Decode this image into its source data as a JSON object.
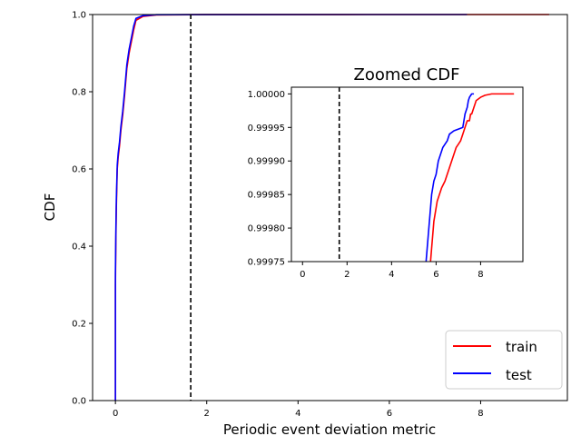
{
  "chart_data": [
    {
      "type": "line",
      "panel": "main",
      "title": "",
      "xlabel": "Periodic event deviation metric",
      "ylabel": "CDF",
      "xlim": [
        -0.5,
        9.9
      ],
      "ylim": [
        0.0,
        1.0
      ],
      "xticks": [
        0,
        2,
        4,
        6,
        8
      ],
      "yticks": [
        0.0,
        0.2,
        0.4,
        0.6,
        0.8,
        1.0
      ],
      "xtick_labels": [
        "0",
        "2",
        "4",
        "6",
        "8"
      ],
      "ytick_labels": [
        "0.0",
        "0.2",
        "0.4",
        "0.6",
        "0.8",
        "1.0"
      ],
      "grid": false,
      "legend_position": "lower-right",
      "threshold_line": {
        "x": 1.65,
        "style": "dashed",
        "color": "#000000"
      },
      "series": [
        {
          "name": "train",
          "color": "#ff0000",
          "x": [
            0.0,
            0.0,
            0.01,
            0.02,
            0.04,
            0.06,
            0.09,
            0.12,
            0.16,
            0.2,
            0.25,
            0.3,
            0.35,
            0.4,
            0.45,
            0.6,
            0.9,
            2.0,
            5.5,
            6.0,
            7.0,
            9.5
          ],
          "y": [
            0.0,
            0.3,
            0.42,
            0.5,
            0.6,
            0.63,
            0.66,
            0.7,
            0.74,
            0.79,
            0.86,
            0.9,
            0.93,
            0.96,
            0.985,
            0.995,
            0.999,
            0.9999,
            0.99997,
            0.99998,
            0.99999,
            1.0
          ]
        },
        {
          "name": "test",
          "color": "#0000ff",
          "x": [
            0.0,
            0.0,
            0.01,
            0.02,
            0.04,
            0.06,
            0.09,
            0.12,
            0.16,
            0.2,
            0.25,
            0.3,
            0.35,
            0.4,
            0.45,
            0.6,
            0.9,
            2.0,
            5.5,
            6.0,
            7.0,
            7.7
          ],
          "y": [
            0.0,
            0.33,
            0.44,
            0.52,
            0.61,
            0.64,
            0.67,
            0.71,
            0.75,
            0.8,
            0.87,
            0.91,
            0.94,
            0.97,
            0.99,
            0.997,
            0.9995,
            0.99995,
            0.99997,
            0.99998,
            0.99999,
            1.0
          ]
        }
      ]
    },
    {
      "type": "line",
      "panel": "inset",
      "title": "Zoomed CDF",
      "xlabel": "",
      "ylabel": "",
      "xlim": [
        -0.5,
        9.9
      ],
      "ylim": [
        0.99975,
        1.00001
      ],
      "xticks": [
        0,
        2,
        4,
        6,
        8
      ],
      "yticks": [
        0.99975,
        0.9998,
        0.99985,
        0.9999,
        0.99995,
        1.0
      ],
      "xtick_labels": [
        "0",
        "2",
        "4",
        "6",
        "8"
      ],
      "ytick_labels": [
        "0.99975",
        "0.99980",
        "0.99985",
        "0.99990",
        "0.99995",
        "1.00000"
      ],
      "grid": false,
      "threshold_line": {
        "x": 1.65,
        "style": "dashed",
        "color": "#000000"
      },
      "series": [
        {
          "name": "train",
          "color": "#ff0000",
          "x": [
            5.75,
            5.8,
            5.85,
            5.9,
            5.95,
            6.0,
            6.05,
            6.15,
            6.25,
            6.4,
            6.5,
            6.6,
            6.7,
            6.8,
            6.9,
            7.0,
            7.1,
            7.2,
            7.3,
            7.4,
            7.5,
            7.55,
            7.6,
            7.7,
            7.8,
            8.0,
            8.2,
            8.5,
            9.5
          ],
          "y": [
            0.99975,
            0.99977,
            0.99979,
            0.99981,
            0.99982,
            0.99983,
            0.99984,
            0.99985,
            0.99986,
            0.99987,
            0.99988,
            0.99989,
            0.9999,
            0.99991,
            0.99992,
            0.999925,
            0.99993,
            0.99994,
            0.99995,
            0.99996,
            0.99996,
            0.99997,
            0.99997,
            0.99998,
            0.99999,
            0.999995,
            0.999998,
            1.0,
            1.0
          ]
        },
        {
          "name": "test",
          "color": "#0000ff",
          "x": [
            5.55,
            5.6,
            5.65,
            5.7,
            5.75,
            5.8,
            5.85,
            5.9,
            6.0,
            6.05,
            6.1,
            6.2,
            6.3,
            6.5,
            6.6,
            6.8,
            7.2,
            7.3,
            7.4,
            7.45,
            7.5,
            7.6,
            7.7
          ],
          "y": [
            0.99975,
            0.99977,
            0.99979,
            0.99981,
            0.99983,
            0.99985,
            0.99986,
            0.99987,
            0.99988,
            0.99989,
            0.9999,
            0.99991,
            0.99992,
            0.99993,
            0.99994,
            0.999945,
            0.99995,
            0.99997,
            0.99998,
            0.99999,
            0.999995,
            1.0,
            1.0
          ]
        }
      ]
    }
  ]
}
